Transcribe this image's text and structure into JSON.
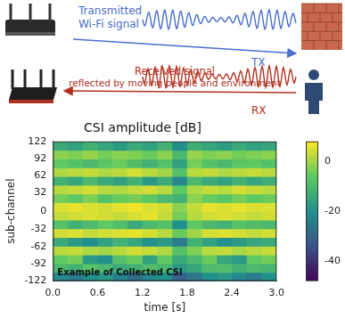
{
  "diagram": {
    "tx_text": [
      "Transmitted",
      "Wi-Fi signal"
    ],
    "tx_label": "TX",
    "rx_text": [
      "Received signal",
      "reflected by moving people and environment"
    ],
    "rx_label": "RX"
  },
  "chart_data": {
    "type": "heatmap",
    "title": "CSI amplitude [dB]",
    "x_label": "time [s]",
    "y_label": "sub-channel",
    "annotation": "Example of Collected CSI",
    "xlim": [
      0,
      3
    ],
    "xticks": [
      {
        "value": 0,
        "label": "0.0"
      },
      0.6,
      1.2,
      1.8,
      2.4,
      {
        "value": 3,
        "label": "3.0"
      }
    ],
    "ylim": [
      -122,
      122
    ],
    "yticks": [
      -122,
      -92,
      -62,
      -32,
      0,
      32,
      62,
      92,
      122
    ],
    "grid": false,
    "x_edges": [
      0,
      0.2,
      0.4,
      0.6,
      0.8,
      1.0,
      1.2,
      1.4,
      1.6,
      1.8,
      2.0,
      2.2,
      2.4,
      2.6,
      2.8,
      3.0
    ],
    "y_edges": [
      -122,
      -106.75,
      -91.5,
      -76.25,
      -61,
      -45.75,
      -30.5,
      -15.25,
      0,
      15.25,
      30.5,
      45.75,
      61,
      76.25,
      91.5,
      106.75,
      122
    ],
    "cells": [
      [
        -22,
        -25,
        -20,
        -18,
        -24,
        -28,
        -22,
        -20,
        -30,
        -26,
        -20,
        -18,
        -22,
        -25,
        -20
      ],
      [
        -10,
        -12,
        -8,
        -10,
        -14,
        -12,
        -9,
        -11,
        -18,
        -15,
        -10,
        -9,
        -12,
        -10,
        -11
      ],
      [
        -6,
        -4,
        -18,
        -20,
        -8,
        -5,
        -16,
        -6,
        -14,
        -10,
        -5,
        -15,
        -18,
        -6,
        -4
      ],
      [
        2,
        3,
        1,
        0,
        2,
        4,
        3,
        1,
        -8,
        -3,
        2,
        3,
        1,
        2,
        3
      ],
      [
        -14,
        -18,
        -20,
        -16,
        -12,
        -15,
        -20,
        -18,
        -25,
        -12,
        -16,
        -20,
        -18,
        -15,
        -14
      ],
      [
        4,
        5,
        3,
        4,
        5,
        6,
        4,
        2,
        -5,
        0,
        4,
        5,
        4,
        3,
        4
      ],
      [
        -8,
        -12,
        -10,
        -6,
        -9,
        -14,
        -10,
        -8,
        -20,
        -6,
        -10,
        -12,
        -8,
        -9,
        -10
      ],
      [
        3,
        4,
        5,
        4,
        3,
        5,
        6,
        3,
        -4,
        2,
        4,
        5,
        4,
        3,
        4
      ],
      [
        5,
        6,
        5,
        4,
        6,
        7,
        5,
        4,
        -2,
        3,
        6,
        5,
        6,
        5,
        5
      ],
      [
        -4,
        -6,
        -3,
        -8,
        -5,
        -4,
        -6,
        -10,
        -12,
        -2,
        -5,
        -7,
        -4,
        -6,
        -5
      ],
      [
        2,
        3,
        4,
        2,
        1,
        3,
        4,
        2,
        -6,
        1,
        3,
        2,
        4,
        3,
        2
      ],
      [
        -12,
        -15,
        -10,
        -14,
        -16,
        -12,
        -18,
        -14,
        -22,
        -10,
        -14,
        -16,
        -12,
        -15,
        -13
      ],
      [
        1,
        2,
        3,
        1,
        2,
        4,
        2,
        0,
        -8,
        2,
        3,
        1,
        2,
        3,
        2
      ],
      [
        -6,
        -8,
        -10,
        -7,
        -5,
        -9,
        -12,
        -8,
        -16,
        -4,
        -8,
        -10,
        -7,
        -6,
        -8
      ],
      [
        -2,
        -3,
        -1,
        -4,
        -2,
        -3,
        -5,
        -2,
        -10,
        -1,
        -3,
        -2,
        -4,
        -3,
        -2
      ],
      [
        -14,
        -16,
        -12,
        -15,
        -18,
        -14,
        -16,
        -12,
        -20,
        -13,
        -15,
        -17,
        -14,
        -16,
        -15
      ]
    ],
    "colorbar": {
      "range": [
        -48,
        8
      ],
      "ticks": [
        0,
        -20,
        -40
      ]
    }
  }
}
